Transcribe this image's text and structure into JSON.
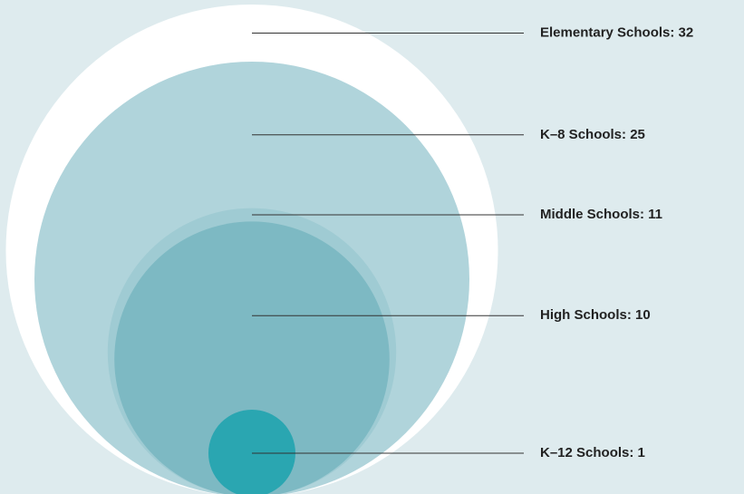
{
  "chart_data": {
    "type": "bubble",
    "values": [
      32,
      25,
      11,
      10,
      1
    ],
    "value_labels": [
      "Elementary Schools: 32",
      "K–8 Schools: 25",
      "Middle Schools: 11",
      "High Schools: 10",
      "K–12 Schools: 1"
    ],
    "colors": [
      "#ffffff",
      "#b0d4db",
      "#9fcbd3",
      "#7db9c3",
      "#2aa6b1"
    ],
    "background": "#deebee"
  }
}
